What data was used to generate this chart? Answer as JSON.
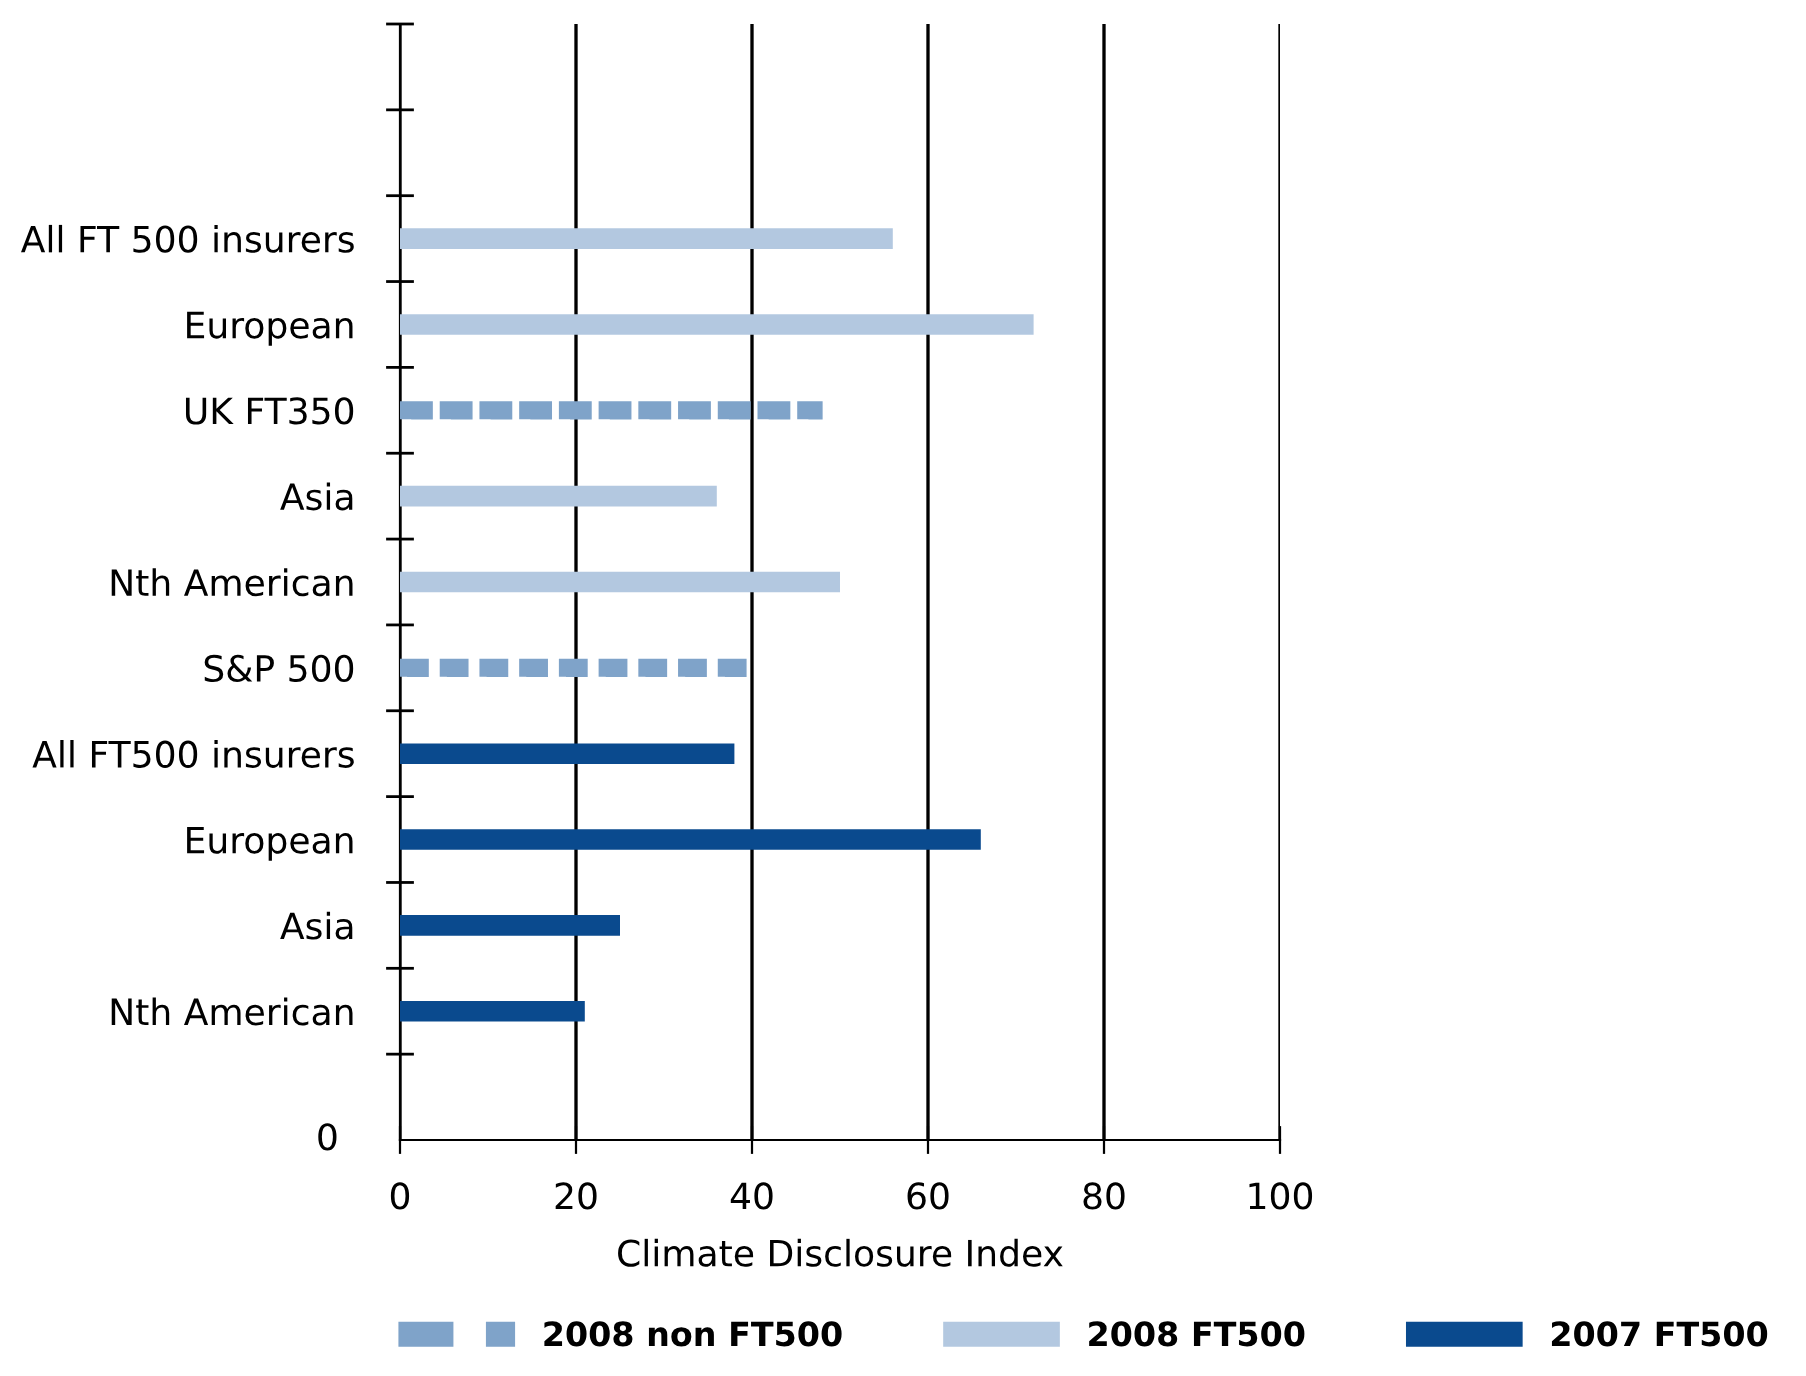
{
  "chart_data": {
    "type": "bar",
    "orientation": "horizontal",
    "xlabel": "Climate Disclosure Index",
    "categories": [
      null,
      null,
      "All FT 500 insurers",
      "European",
      "UK FT350",
      "Asia",
      "Nth American",
      "S&P 500",
      "All FT500 insurers",
      "European",
      "Asia",
      "Nth American",
      null
    ],
    "series": [
      {
        "name": "2008 non FT500",
        "color": "#7fa3c9",
        "line_style": "dashed",
        "values": [
          null,
          null,
          null,
          null,
          47,
          null,
          null,
          40,
          null,
          null,
          null,
          null,
          null
        ]
      },
      {
        "name": "2008 FT500",
        "color": "#b3c8e0",
        "values": [
          null,
          null,
          56,
          72,
          null,
          36,
          50,
          null,
          null,
          null,
          null,
          null,
          null
        ]
      },
      {
        "name": "2007 FT500",
        "color": "#0a4a8e",
        "values": [
          null,
          null,
          null,
          null,
          null,
          null,
          null,
          null,
          38,
          66,
          25,
          21,
          null
        ]
      }
    ],
    "xlim": [
      0,
      100
    ],
    "xticks": [
      0,
      20,
      40,
      60,
      80,
      100
    ],
    "grid": "x",
    "legend": "bottom",
    "annotations": [
      "0"
    ]
  }
}
